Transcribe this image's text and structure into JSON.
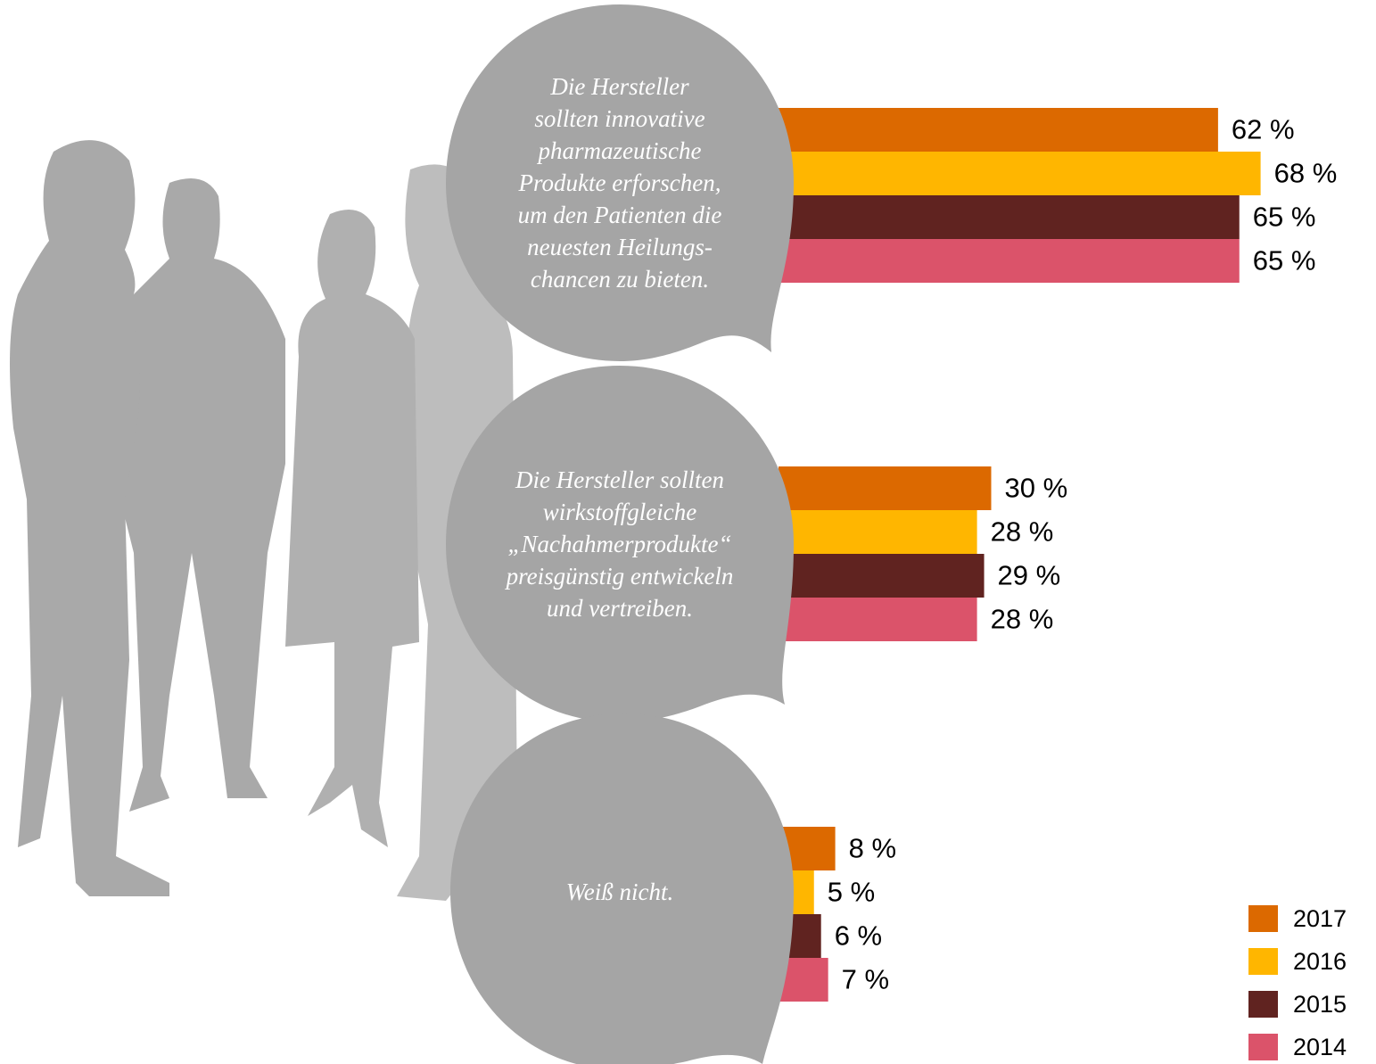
{
  "chart_data": {
    "type": "bar",
    "categories": [
      "Die Hersteller\nsollten innovative\npharmazeutische\nProdukte erforschen,\num den Patienten die\nneuesten Heilungs-\nchancen zu bieten.",
      "Die Hersteller sollten\nwirkstoffgleiche\n„Nachahmerprodukte“\npreisgünstig entwickeln\nund vertreiben.",
      "Weiß nicht."
    ],
    "series": [
      {
        "name": "2017",
        "color": "#dc6900",
        "values": [
          62,
          30,
          8
        ],
        "value_labels": [
          "62 %",
          "30 %",
          "8 %"
        ]
      },
      {
        "name": "2016",
        "color": "#ffb600",
        "values": [
          68,
          28,
          5
        ],
        "value_labels": [
          "68 %",
          "28 %",
          "5 %"
        ]
      },
      {
        "name": "2015",
        "color": "#602320",
        "values": [
          65,
          29,
          6
        ],
        "value_labels": [
          "65 %",
          "29 %",
          "6 %"
        ]
      },
      {
        "name": "2014",
        "color": "#db536a",
        "values": [
          65,
          28,
          7
        ],
        "value_labels": [
          "65 %",
          "28 %",
          "7 %"
        ]
      }
    ]
  }
}
